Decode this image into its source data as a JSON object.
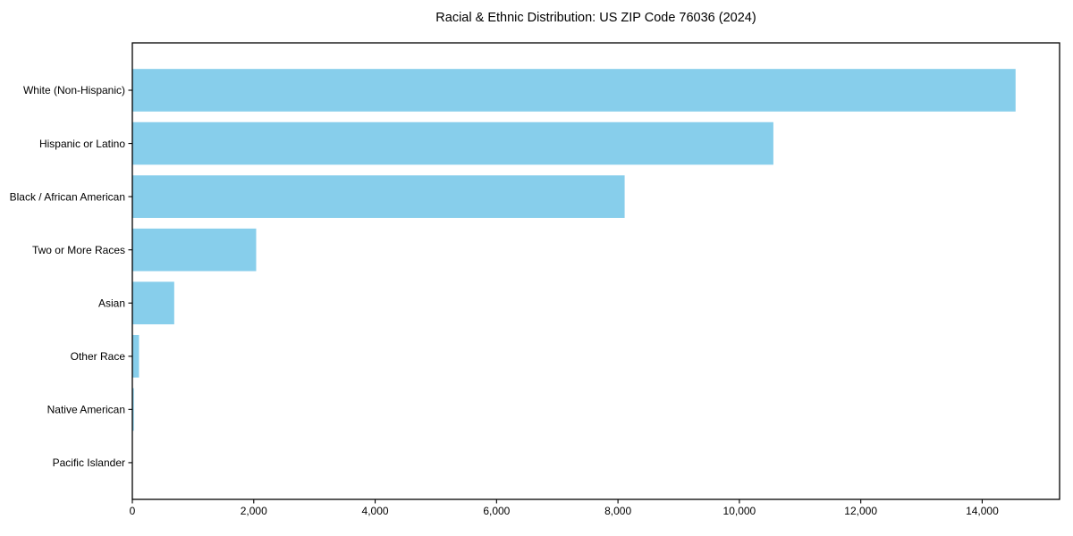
{
  "chart_data": {
    "type": "bar",
    "orientation": "horizontal",
    "title": "Racial & Ethnic Distribution: US ZIP Code 76036 (2024)",
    "categories": [
      "White (Non-Hispanic)",
      "Hispanic or Latino",
      "Black / African American",
      "Two or More Races",
      "Asian",
      "Other Race",
      "Native American",
      "Pacific Islander"
    ],
    "values": [
      14550,
      10560,
      8110,
      2040,
      690,
      110,
      25,
      5
    ],
    "xlabel": "",
    "ylabel": "",
    "xlim": [
      0,
      15275
    ],
    "xticks": [
      0,
      2000,
      4000,
      6000,
      8000,
      10000,
      12000,
      14000
    ],
    "bar_color": "#87CEEB",
    "axis_color": "#000000",
    "background_color": "#ffffff",
    "grid": false,
    "legend": false
  }
}
